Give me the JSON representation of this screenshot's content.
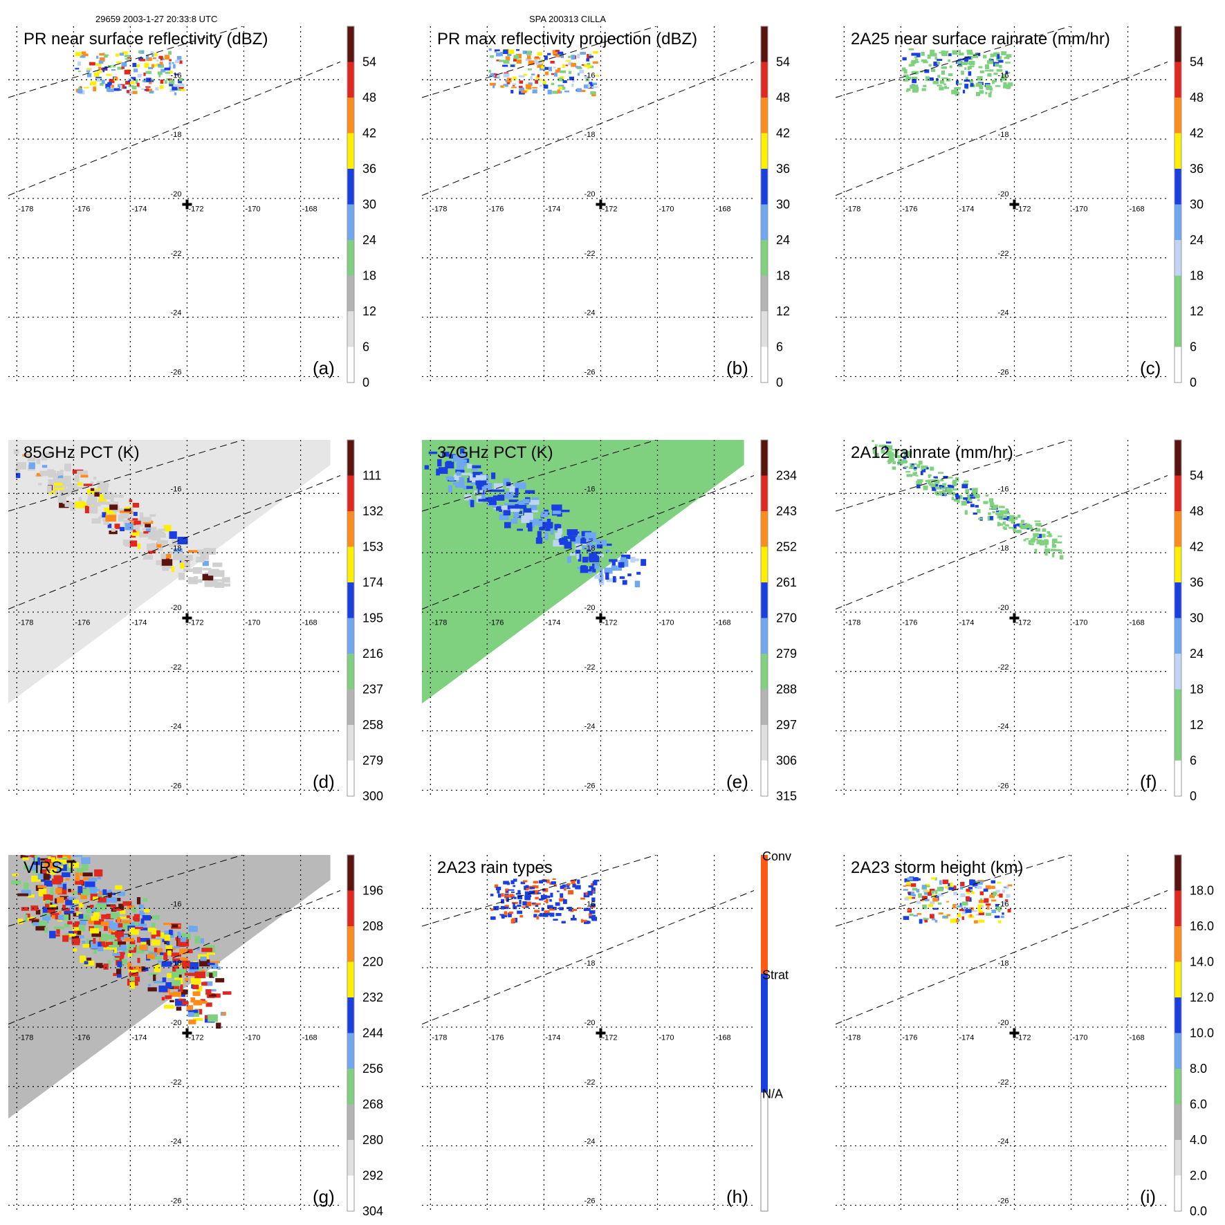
{
  "header": {
    "left": "29659 2003-1-27 20:33:8 UTC",
    "center": "SPA 200313 CILLA"
  },
  "colors": {
    "grid": "#000000",
    "light_green": "#7fd17f",
    "blue": "#1a3fe0",
    "light_blue": "#6fa8f0",
    "orange": "#ff8c1a",
    "red": "#e0281e",
    "dark_red": "#5a1410",
    "yellow": "#fff000",
    "gray": "#b4b4b4"
  },
  "chart_data": [
    {
      "type": "heatmap",
      "id": "a",
      "title": "PR near surface reflectivity (dBZ)",
      "panel_label": "(a)",
      "x_ticks": [
        "-178",
        "-176",
        "-174",
        "-172",
        "-170",
        "-168"
      ],
      "y_ticks": [
        "-16",
        "-18",
        "-20",
        "-22",
        "-24",
        "-26"
      ],
      "xlim": [
        -178.3,
        -166.6
      ],
      "ylim": [
        -26.2,
        -14.2
      ],
      "storm_center": [
        -172.0,
        -20.2
      ],
      "colorbar": {
        "labels": [
          "54",
          "48",
          "42",
          "36",
          "30",
          "24",
          "18",
          "12",
          "6",
          "0"
        ],
        "min": 0,
        "max": 60
      },
      "swath": "pr"
    },
    {
      "type": "heatmap",
      "id": "b",
      "title": "PR max reflectivity projection (dBZ)",
      "panel_label": "(b)",
      "x_ticks": [
        "-178",
        "-176",
        "-174",
        "-172",
        "-170",
        "-168"
      ],
      "y_ticks": [
        "-16",
        "-18",
        "-20",
        "-22",
        "-24",
        "-26"
      ],
      "xlim": [
        -178.3,
        -166.6
      ],
      "ylim": [
        -26.2,
        -14.2
      ],
      "storm_center": [
        -172.0,
        -20.2
      ],
      "colorbar": {
        "labels": [
          "54",
          "48",
          "42",
          "36",
          "30",
          "24",
          "18",
          "12",
          "6",
          "0"
        ],
        "min": 0,
        "max": 60
      },
      "swath": "pr"
    },
    {
      "type": "heatmap",
      "id": "c",
      "title": "2A25 near surface rainrate (mm/hr)",
      "panel_label": "(c)",
      "x_ticks": [
        "-178",
        "-176",
        "-174",
        "-172",
        "-170",
        "-168"
      ],
      "y_ticks": [
        "-16",
        "-18",
        "-20",
        "-22",
        "-24",
        "-26"
      ],
      "xlim": [
        -178.3,
        -166.6
      ],
      "ylim": [
        -26.2,
        -14.2
      ],
      "storm_center": [
        -172.0,
        -20.2
      ],
      "colorbar": {
        "labels": [
          "54",
          "48",
          "42",
          "36",
          "30",
          "24",
          "18",
          "12",
          "6",
          "0"
        ],
        "min": 0,
        "max": 60
      },
      "swath": "pr"
    },
    {
      "type": "heatmap",
      "id": "d",
      "title": "85GHz PCT (K)",
      "panel_label": "(d)",
      "x_ticks": [
        "-178",
        "-176",
        "-174",
        "-172",
        "-170",
        "-168"
      ],
      "y_ticks": [
        "-16",
        "-18",
        "-20",
        "-22",
        "-24",
        "-26"
      ],
      "xlim": [
        -178.3,
        -166.6
      ],
      "ylim": [
        -26.2,
        -14.2
      ],
      "storm_center": [
        -172.0,
        -20.2
      ],
      "colorbar": {
        "labels": [
          "111",
          "132",
          "153",
          "174",
          "195",
          "216",
          "237",
          "258",
          "279",
          "300"
        ],
        "min": 90,
        "max": 300
      },
      "swath": "tmi_gray"
    },
    {
      "type": "heatmap",
      "id": "e",
      "title": "37GHz PCT (K)",
      "panel_label": "(e)",
      "x_ticks": [
        "-178",
        "-176",
        "-174",
        "-172",
        "-170",
        "-168"
      ],
      "y_ticks": [
        "-16",
        "-18",
        "-20",
        "-22",
        "-24",
        "-26"
      ],
      "xlim": [
        -178.3,
        -166.6
      ],
      "ylim": [
        -26.2,
        -14.2
      ],
      "storm_center": [
        -172.0,
        -20.2
      ],
      "colorbar": {
        "labels": [
          "234",
          "243",
          "252",
          "261",
          "270",
          "279",
          "288",
          "297",
          "306",
          "315"
        ],
        "min": 225,
        "max": 315
      },
      "swath": "tmi_green"
    },
    {
      "type": "heatmap",
      "id": "f",
      "title": "2A12 rainrate (mm/hr)",
      "panel_label": "(f)",
      "x_ticks": [
        "-178",
        "-176",
        "-174",
        "-172",
        "-170",
        "-168"
      ],
      "y_ticks": [
        "-16",
        "-18",
        "-20",
        "-22",
        "-24",
        "-26"
      ],
      "xlim": [
        -178.3,
        -166.6
      ],
      "ylim": [
        -26.2,
        -14.2
      ],
      "storm_center": [
        -172.0,
        -20.2
      ],
      "colorbar": {
        "labels": [
          "54",
          "48",
          "42",
          "36",
          "30",
          "24",
          "18",
          "12",
          "6",
          "0"
        ],
        "min": 0,
        "max": 60
      },
      "swath": "rain12"
    },
    {
      "type": "heatmap",
      "id": "g",
      "title": "VIRS T",
      "panel_label": "(g)",
      "x_ticks": [
        "-178",
        "-176",
        "-174",
        "-172",
        "-170",
        "-168"
      ],
      "y_ticks": [
        "-16",
        "-18",
        "-20",
        "-22",
        "-24",
        "-26"
      ],
      "xlim": [
        -178.3,
        -166.6
      ],
      "ylim": [
        -26.2,
        -14.2
      ],
      "storm_center": [
        -172.0,
        -20.2
      ],
      "colorbar": {
        "labels": [
          "196",
          "208",
          "220",
          "232",
          "244",
          "256",
          "268",
          "280",
          "292",
          "304"
        ],
        "min": 184,
        "max": 304
      },
      "swath": "virs"
    },
    {
      "type": "heatmap",
      "id": "h",
      "title": "2A23 rain types",
      "panel_label": "(h)",
      "x_ticks": [
        "-178",
        "-176",
        "-174",
        "-172",
        "-170",
        "-168"
      ],
      "y_ticks": [
        "-16",
        "-18",
        "-20",
        "-22",
        "-24",
        "-26"
      ],
      "xlim": [
        -178.3,
        -166.6
      ],
      "ylim": [
        -26.2,
        -14.2
      ],
      "storm_center": [
        -172.0,
        -20.2
      ],
      "colorbar": {
        "categories": [
          "Conv",
          "Strat",
          "N/A"
        ]
      },
      "swath": "types"
    },
    {
      "type": "heatmap",
      "id": "i",
      "title": "2A23 storm height (km)",
      "panel_label": "(i)",
      "x_ticks": [
        "-178",
        "-176",
        "-174",
        "-172",
        "-170",
        "-168"
      ],
      "y_ticks": [
        "-16",
        "-18",
        "-20",
        "-22",
        "-24",
        "-26"
      ],
      "xlim": [
        -178.3,
        -166.6
      ],
      "ylim": [
        -26.2,
        -14.2
      ],
      "storm_center": [
        -172.0,
        -20.2
      ],
      "colorbar": {
        "labels": [
          "18.0",
          "16.0",
          "14.0",
          "12.0",
          "10.0",
          "8.0",
          "6.0",
          "4.0",
          "2.0",
          "0.0"
        ],
        "min": 0,
        "max": 20
      },
      "swath": "height"
    }
  ]
}
